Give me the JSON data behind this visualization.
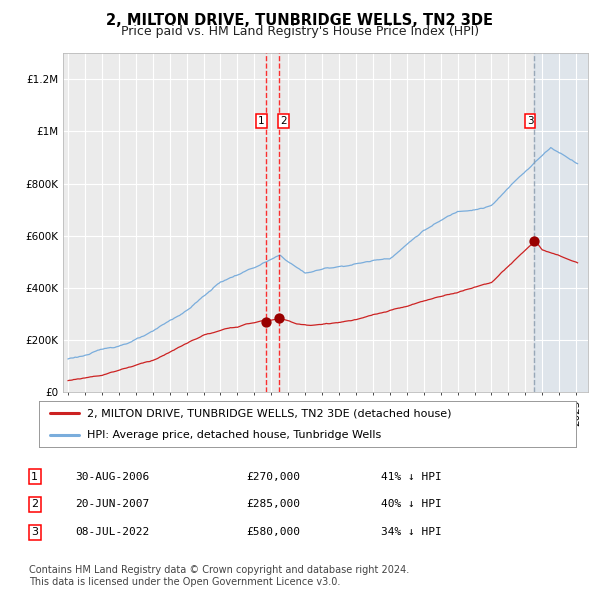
{
  "title": "2, MILTON DRIVE, TUNBRIDGE WELLS, TN2 3DE",
  "subtitle": "Price paid vs. HM Land Registry's House Price Index (HPI)",
  "background_color": "#ffffff",
  "plot_bg_color": "#ebebeb",
  "grid_color": "#ffffff",
  "ylim": [
    0,
    1300000
  ],
  "yticks": [
    0,
    200000,
    400000,
    600000,
    800000,
    1000000,
    1200000
  ],
  "ytick_labels": [
    "£0",
    "£200K",
    "£400K",
    "£600K",
    "£800K",
    "£1M",
    "£1.2M"
  ],
  "hpi_color": "#7aaddc",
  "price_color": "#cc2222",
  "sale_marker_color": "#990000",
  "sale1_date": 2006.66,
  "sale1_price": 270000,
  "sale2_date": 2007.47,
  "sale2_price": 285000,
  "sale3_date": 2022.52,
  "sale3_price": 580000,
  "legend_label_price": "2, MILTON DRIVE, TUNBRIDGE WELLS, TN2 3DE (detached house)",
  "legend_label_hpi": "HPI: Average price, detached house, Tunbridge Wells",
  "table_rows": [
    {
      "num": "1",
      "date": "30-AUG-2006",
      "price": "£270,000",
      "hpi": "41% ↓ HPI"
    },
    {
      "num": "2",
      "date": "20-JUN-2007",
      "price": "£285,000",
      "hpi": "40% ↓ HPI"
    },
    {
      "num": "3",
      "date": "08-JUL-2022",
      "price": "£580,000",
      "hpi": "34% ↓ HPI"
    }
  ],
  "footer": "Contains HM Land Registry data © Crown copyright and database right 2024.\nThis data is licensed under the Open Government Licence v3.0.",
  "title_fontsize": 10.5,
  "subtitle_fontsize": 9,
  "tick_fontsize": 7.5,
  "legend_fontsize": 8,
  "table_fontsize": 8,
  "footer_fontsize": 7
}
